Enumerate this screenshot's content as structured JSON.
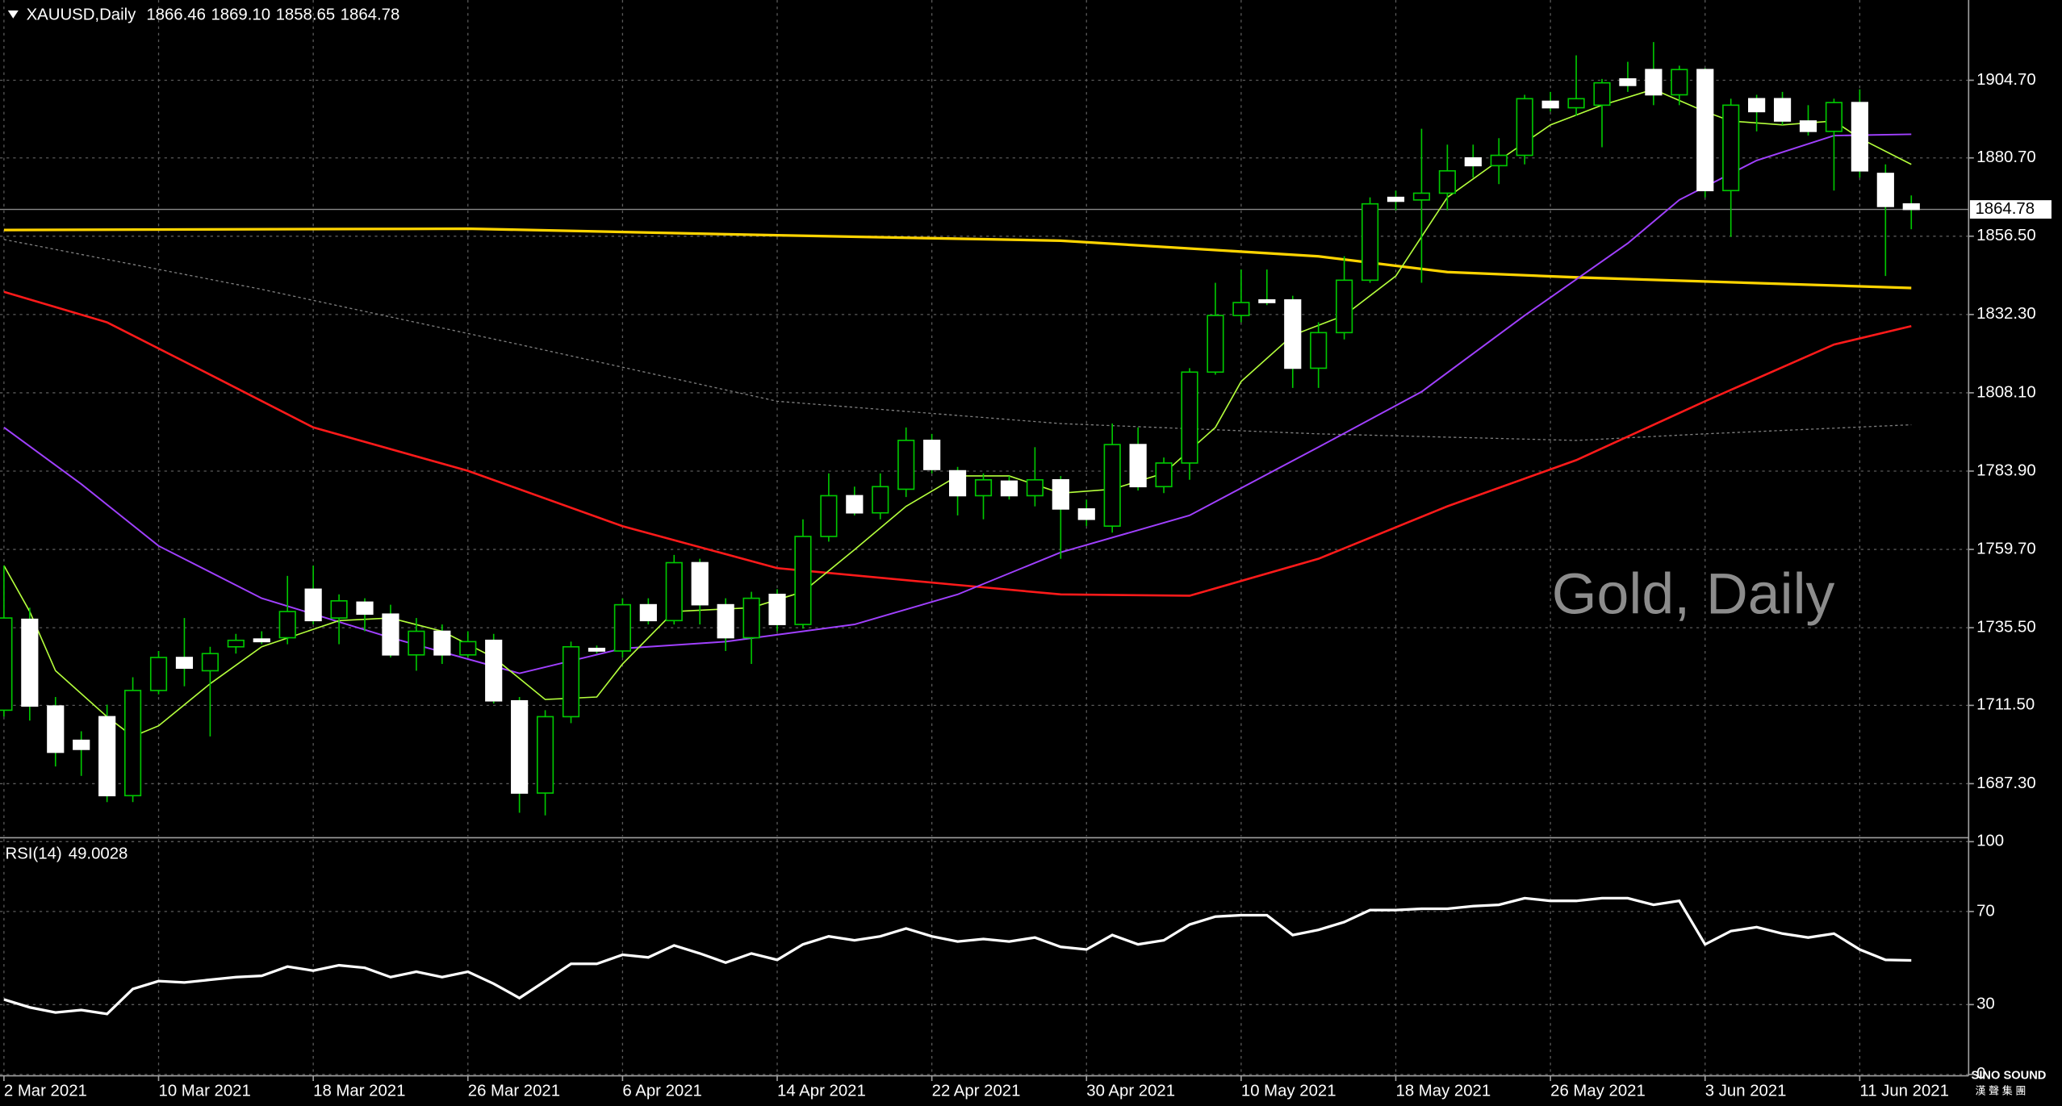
{
  "chart_data": [
    {
      "type": "candlestick",
      "title": "XAUUSD,Daily",
      "ohlc_header": [
        1866.46,
        {
          "value": 1869.1,
          "label": "1869.10"
        },
        1858.65,
        1864.78
      ],
      "watermark": "Gold, Daily",
      "last_price": 1864.78,
      "categories": [
        "2 Mar 2021",
        null,
        null,
        null,
        null,
        null,
        "10 Mar 2021",
        null,
        null,
        null,
        null,
        null,
        "18 Mar 2021",
        null,
        null,
        null,
        null,
        null,
        "26 Mar 2021",
        null,
        null,
        null,
        null,
        null,
        "6 Apr 2021",
        null,
        null,
        null,
        null,
        null,
        "14 Apr 2021",
        null,
        null,
        null,
        null,
        null,
        "22 Apr 2021",
        null,
        null,
        null,
        null,
        null,
        "30 Apr 2021",
        null,
        null,
        null,
        null,
        null,
        "10 May 2021",
        null,
        null,
        null,
        null,
        null,
        "18 May 2021",
        null,
        null,
        null,
        null,
        null,
        "26 May 2021",
        null,
        null,
        null,
        null,
        null,
        "3 Jun 2021",
        null,
        null,
        null,
        null,
        null,
        "11 Jun 2021",
        null,
        null
      ],
      "open": [
        1710.0,
        1738.1,
        1711.3,
        1700.7,
        1708.0,
        1683.6,
        1716.1,
        1726.3,
        1722.2,
        1729.6,
        1732.0,
        1732.4,
        1747.4,
        1738.5,
        1743.4,
        1739.7,
        1727.1,
        1734.4,
        1727.1,
        1731.6,
        1712.9,
        1684.4,
        1708.0,
        1729.1,
        1728.3,
        1742.6,
        1737.7,
        1755.6,
        1742.6,
        1732.4,
        1745.8,
        1736.5,
        1763.7,
        1776.3,
        1771.0,
        1778.3,
        1793.4,
        1784.0,
        1776.3,
        1780.8,
        1776.3,
        1781.2,
        1772.2,
        1766.9,
        1792.1,
        1779.1,
        1786.4,
        1814.5,
        1832.0,
        1836.8,
        1836.8,
        1815.7,
        1826.7,
        1842.9,
        1868.5,
        1867.7,
        1869.8,
        1880.7,
        1878.3,
        1881.5,
        1898.2,
        1896.2,
        1897.0,
        1905.1,
        1908.0,
        1900.2,
        1908.0,
        1870.6,
        1899.0,
        1899.0,
        1892.1,
        1888.9,
        1897.8,
        1875.9,
        1866.46
      ],
      "high": [
        1754.7,
        1741.7,
        1714.1,
        1703.5,
        1711.7,
        1720.2,
        1728.3,
        1738.5,
        1729.6,
        1733.6,
        1734.4,
        1751.5,
        1754.7,
        1745.8,
        1744.6,
        1742.6,
        1738.5,
        1736.5,
        1734.4,
        1733.6,
        1714.1,
        1710.0,
        1731.2,
        1730.0,
        1744.6,
        1744.6,
        1758.0,
        1756.8,
        1744.6,
        1746.6,
        1747.4,
        1769.0,
        1783.2,
        1779.1,
        1783.2,
        1797.4,
        1795.4,
        1785.2,
        1783.2,
        1782.4,
        1791.3,
        1782.4,
        1775.1,
        1798.6,
        1797.4,
        1788.1,
        1815.7,
        1842.1,
        1846.2,
        1846.2,
        1838.1,
        1829.9,
        1850.3,
        1868.5,
        1870.6,
        1889.7,
        1884.8,
        1884.8,
        1886.8,
        1900.2,
        1901.1,
        1912.4,
        1905.1,
        1910.4,
        1916.5,
        1909.2,
        1908.4,
        1899.0,
        1900.2,
        1901.1,
        1897.0,
        1899.0,
        1901.9,
        1878.7,
        1869.1
      ],
      "low": [
        1708.0,
        1706.8,
        1692.6,
        1689.7,
        1681.6,
        1681.6,
        1714.9,
        1717.4,
        1701.9,
        1727.5,
        1730.4,
        1730.4,
        1736.5,
        1730.4,
        1734.4,
        1726.3,
        1722.2,
        1724.3,
        1726.3,
        1712.1,
        1678.3,
        1677.5,
        1706.0,
        1727.5,
        1726.3,
        1736.5,
        1736.5,
        1736.5,
        1728.3,
        1724.3,
        1734.4,
        1735.2,
        1762.1,
        1770.2,
        1769.0,
        1775.9,
        1783.2,
        1770.2,
        1769.0,
        1775.1,
        1773.0,
        1756.8,
        1766.9,
        1764.9,
        1777.9,
        1777.1,
        1781.2,
        1813.7,
        1829.9,
        1835.2,
        1809.6,
        1809.6,
        1824.6,
        1842.1,
        1864.5,
        1842.1,
        1864.5,
        1874.6,
        1872.6,
        1878.7,
        1895.0,
        1893.7,
        1884.0,
        1901.1,
        1897.0,
        1897.0,
        1868.5,
        1856.3,
        1888.9,
        1890.9,
        1887.6,
        1870.6,
        1874.6,
        1844.2,
        1858.65
      ],
      "close": [
        1738.5,
        1711.3,
        1697.0,
        1697.9,
        1683.6,
        1716.1,
        1726.3,
        1723.0,
        1727.5,
        1731.6,
        1731.2,
        1740.5,
        1737.7,
        1743.8,
        1739.7,
        1727.1,
        1734.4,
        1727.1,
        1731.2,
        1712.9,
        1684.4,
        1708.0,
        1729.6,
        1728.3,
        1742.6,
        1737.7,
        1755.6,
        1742.6,
        1732.4,
        1744.6,
        1736.5,
        1763.7,
        1776.3,
        1771.0,
        1779.1,
        1793.4,
        1784.4,
        1776.3,
        1781.2,
        1776.3,
        1781.2,
        1772.2,
        1769.0,
        1792.1,
        1779.1,
        1786.4,
        1814.5,
        1832.0,
        1836.0,
        1836.0,
        1815.7,
        1826.7,
        1842.9,
        1866.5,
        1867.3,
        1869.8,
        1876.7,
        1878.3,
        1881.5,
        1899.0,
        1896.2,
        1899.0,
        1903.9,
        1903.1,
        1900.2,
        1908.0,
        1870.6,
        1897.0,
        1895.0,
        1892.1,
        1888.9,
        1897.8,
        1876.7,
        1865.7,
        1864.78
      ],
      "bull_fill": "#000000",
      "bear_fill": "#ffffff",
      "wick_color": "#00c800",
      "series": [
        {
          "color": "#ffd400",
          "width": 2,
          "x": [
            0,
            18,
            30,
            41,
            51,
            56,
            61,
            74
          ],
          "values": [
            1858.4,
            1858.8,
            1856.8,
            1855.1,
            1850.3,
            1845.4,
            1843.8,
            1840.5
          ]
        },
        {
          "color": "#808080",
          "width": 0.8,
          "dashed": true,
          "x": [
            0,
            10,
            20,
            30,
            41,
            51,
            61,
            66,
            74
          ],
          "values": [
            1855.5,
            1840.1,
            1823.0,
            1805.5,
            1798.6,
            1795.4,
            1793.4,
            1795.4,
            1798.2
          ]
        },
        {
          "color": "#ff1a1a",
          "width": 1.6,
          "x": [
            0,
            4,
            8,
            12,
            18,
            24,
            30,
            37,
            41,
            46,
            51,
            56,
            61,
            66,
            71,
            74
          ],
          "values": [
            1839.3,
            1829.9,
            1813.7,
            1797.4,
            1784.0,
            1766.9,
            1753.9,
            1748.7,
            1745.8,
            1745.4,
            1756.8,
            1773.0,
            1787.3,
            1805.5,
            1823.0,
            1828.7
          ]
        },
        {
          "color": "#a040ff",
          "width": 1.2,
          "x": [
            0,
            3,
            6,
            10,
            15,
            20,
            24,
            28,
            33,
            37,
            41,
            46,
            51,
            55,
            59,
            63,
            65,
            68,
            71,
            74
          ],
          "values": [
            1797.4,
            1779.9,
            1760.8,
            1744.6,
            1732.4,
            1721.4,
            1729.1,
            1731.2,
            1736.5,
            1745.8,
            1758.8,
            1770.2,
            1791.3,
            1808.4,
            1832.0,
            1854.3,
            1867.7,
            1879.9,
            1887.6,
            1888.0
          ]
        },
        {
          "color": "#b4ff3c",
          "width": 1,
          "x": [
            0,
            1,
            2,
            4,
            5,
            6,
            8,
            10,
            13,
            15,
            17,
            19,
            21,
            23,
            24,
            26,
            29,
            31,
            33,
            35,
            37,
            39,
            41,
            43,
            45,
            47,
            48,
            50,
            52,
            54,
            56,
            58,
            60,
            62,
            64,
            66,
            67,
            69,
            71,
            72,
            74
          ],
          "values": [
            1754.7,
            1740.5,
            1722.2,
            1708.0,
            1701.9,
            1705.2,
            1718.2,
            1729.6,
            1737.7,
            1738.5,
            1734.4,
            1726.3,
            1713.3,
            1714.1,
            1724.3,
            1740.5,
            1741.7,
            1746.6,
            1759.6,
            1773.0,
            1782.4,
            1782.4,
            1777.1,
            1778.3,
            1783.2,
            1797.4,
            1811.6,
            1825.9,
            1832.0,
            1844.2,
            1868.5,
            1879.9,
            1890.9,
            1897.0,
            1901.9,
            1895.0,
            1892.1,
            1890.9,
            1892.1,
            1886.8,
            1878.7
          ]
        }
      ],
      "ylim": [
        1671.0,
        1929.5
      ],
      "yticks": [
        {
          "value": 1904.7,
          "label": "1904.70"
        },
        {
          "value": 1880.7,
          "label": "1880.70"
        },
        {
          "value": 1856.5,
          "label": "1856.50"
        },
        {
          "value": 1832.3,
          "label": "1832.30"
        },
        {
          "value": 1808.1,
          "label": "1808.10"
        },
        {
          "value": 1783.9,
          "label": "1783.90"
        },
        {
          "value": 1759.7,
          "label": "1759.70"
        },
        {
          "value": 1735.5,
          "label": "1735.50"
        },
        {
          "value": 1711.5,
          "label": "1711.50"
        },
        {
          "value": 1687.3,
          "label": "1687.30"
        }
      ],
      "grid": true
    },
    {
      "type": "line",
      "title": "RSI(14)",
      "current": 49.0028,
      "color": "#ffffff",
      "values": [
        32.2,
        28.8,
        26.6,
        27.7,
        26.0,
        36.7,
        40.1,
        39.5,
        40.7,
        41.8,
        42.4,
        46.3,
        44.6,
        46.9,
        45.8,
        41.8,
        44.1,
        41.8,
        44.1,
        39.0,
        32.8,
        40.1,
        47.5,
        47.5,
        51.4,
        50.3,
        55.4,
        52.0,
        48.0,
        52.0,
        49.2,
        55.9,
        59.3,
        57.6,
        59.3,
        62.7,
        59.3,
        57.1,
        58.2,
        57.1,
        58.8,
        54.8,
        53.7,
        59.9,
        55.9,
        57.6,
        64.4,
        67.8,
        68.4,
        68.4,
        59.9,
        62.1,
        65.5,
        70.6,
        70.6,
        71.2,
        71.2,
        72.3,
        72.9,
        75.7,
        74.6,
        74.6,
        75.7,
        75.7,
        72.9,
        74.6,
        55.9,
        61.6,
        63.3,
        60.5,
        58.8,
        60.5,
        53.7,
        49.2,
        49.0028
      ],
      "ylim": [
        0,
        100
      ],
      "yticks": [
        100,
        70,
        30,
        0
      ]
    }
  ],
  "logo": {
    "name": "SINO SOUND",
    "subtitle": "漢 聲 集 團"
  }
}
